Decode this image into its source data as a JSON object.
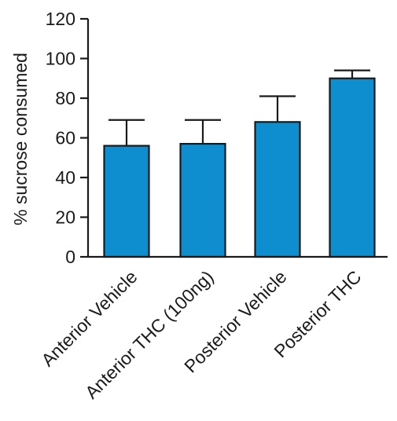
{
  "chart_data": {
    "type": "bar",
    "title": "",
    "xlabel": "",
    "ylabel": "% sucrose consumed",
    "ylim": [
      0,
      120
    ],
    "yticks": [
      0,
      20,
      40,
      60,
      80,
      100,
      120
    ],
    "grid": false,
    "categories": [
      "Anterior Vehicle",
      "Anterior THC (100ng)",
      "Posterior Vehicle",
      "Posterior THC"
    ],
    "values": [
      56,
      57,
      68,
      90
    ],
    "error_upper": [
      69,
      69,
      81,
      94
    ],
    "bar_color": "#0f8ecf",
    "edge_color": "#1a1a1a"
  }
}
